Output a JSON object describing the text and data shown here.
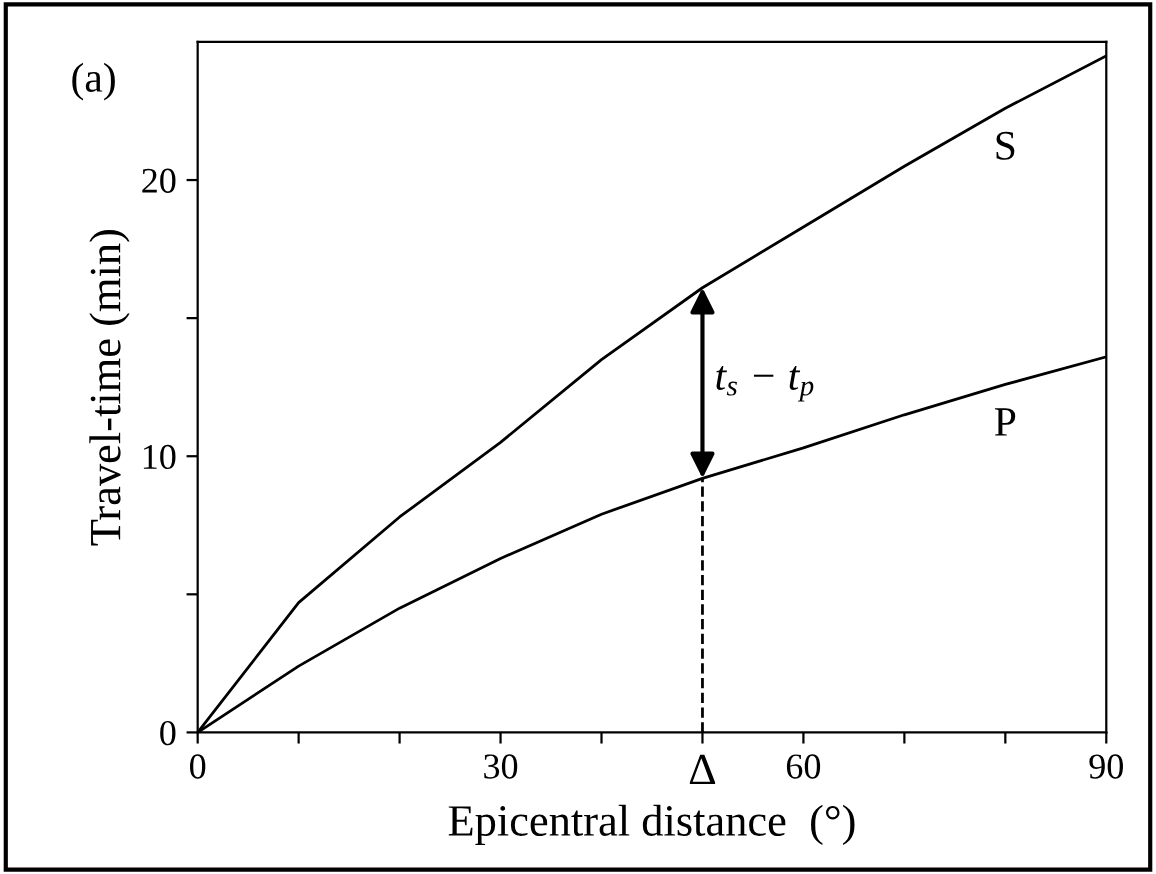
{
  "chart_data": {
    "type": "line",
    "xlabel": "Epicentral distance  (°)",
    "ylabel": "Travel-time (min)",
    "x": [
      0,
      10,
      20,
      30,
      40,
      50,
      60,
      70,
      80,
      90
    ],
    "series": [
      {
        "name": "S",
        "color": "#000000",
        "values": [
          0,
          4.7,
          7.8,
          10.5,
          13.5,
          16.1,
          18.3,
          20.5,
          22.6,
          24.5
        ]
      },
      {
        "name": "P",
        "color": "#000000",
        "values": [
          0,
          2.4,
          4.5,
          6.3,
          7.9,
          9.2,
          10.3,
          11.5,
          12.6,
          13.6
        ]
      }
    ],
    "xlim": [
      0,
      90
    ],
    "ylim": [
      0,
      25
    ],
    "xticks": [
      0,
      {
        "value": 10,
        "label": null
      },
      {
        "value": 20,
        "label": null
      },
      30,
      {
        "value": 40,
        "label": null
      },
      {
        "value": 50,
        "label": "Δ"
      },
      60,
      {
        "value": 70,
        "label": null
      },
      {
        "value": 80,
        "label": null
      },
      90
    ],
    "yticks": [
      0,
      {
        "value": 5,
        "label": null
      },
      10,
      {
        "value": 15,
        "label": null
      },
      20
    ],
    "ref_lines": [
      {
        "axis": "x",
        "value": 50,
        "line_style": "dashed",
        "color": "#000000"
      }
    ],
    "annotations": [
      "(a)",
      "t$_{s}$ − t$_{p}$"
    ],
    "grid": false,
    "legend": false,
    "marker": "none",
    "line_style": "solid"
  }
}
